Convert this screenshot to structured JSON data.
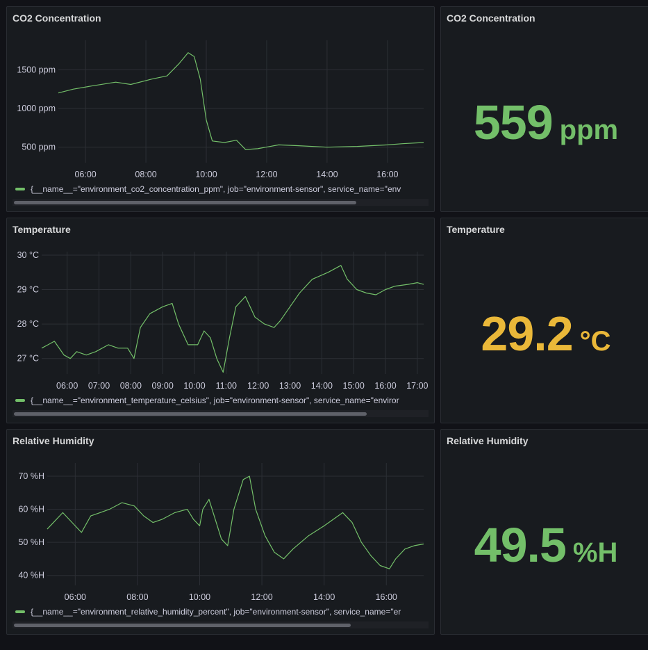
{
  "colors": {
    "series": "#73bf69",
    "green": "#73bf69",
    "yellow": "#eab839",
    "grid": "#2c2f35"
  },
  "panels": {
    "co2_chart": {
      "title": "CO2 Concentration",
      "legend": "{__name__=\"environment_co2_concentration_ppm\", job=\"environment-sensor\", service_name=\"env"
    },
    "co2_stat": {
      "title": "CO2 Concentration",
      "value": "559",
      "unit": "ppm",
      "color": "#73bf69"
    },
    "temp_chart": {
      "title": "Temperature",
      "legend": "{__name__=\"environment_temperature_celsius\", job=\"environment-sensor\", service_name=\"enviror"
    },
    "temp_stat": {
      "title": "Temperature",
      "value": "29.2",
      "unit": "°C",
      "color": "#eab839"
    },
    "hum_chart": {
      "title": "Relative Humidity",
      "legend": "{__name__=\"environment_relative_humidity_percent\", job=\"environment-sensor\", service_name=\"er"
    },
    "hum_stat": {
      "title": "Relative Humidity",
      "value": "49.5",
      "unit": "%H",
      "color": "#73bf69"
    }
  },
  "chart_data": [
    {
      "type": "line",
      "title": "CO2 Concentration",
      "xlim": [
        5.1,
        17.2
      ],
      "ylim": [
        300,
        1880
      ],
      "y_ticks": [
        500,
        1000,
        1500
      ],
      "y_tick_labels": [
        "500 ppm",
        "1000 ppm",
        "1500 ppm"
      ],
      "x_ticks": [
        6,
        8,
        10,
        12,
        14,
        16
      ],
      "x_tick_labels": [
        "06:00",
        "08:00",
        "10:00",
        "12:00",
        "14:00",
        "16:00"
      ],
      "grid": true,
      "series": [
        {
          "values": [
            [
              5.1,
              1200
            ],
            [
              5.6,
              1250
            ],
            [
              6.2,
              1290
            ],
            [
              7.0,
              1340
            ],
            [
              7.5,
              1310
            ],
            [
              8.2,
              1380
            ],
            [
              8.7,
              1420
            ],
            [
              9.1,
              1580
            ],
            [
              9.4,
              1720
            ],
            [
              9.6,
              1670
            ],
            [
              9.8,
              1380
            ],
            [
              10.0,
              850
            ],
            [
              10.2,
              580
            ],
            [
              10.6,
              560
            ],
            [
              11.0,
              590
            ],
            [
              11.3,
              470
            ],
            [
              11.7,
              480
            ],
            [
              12.4,
              530
            ],
            [
              13.0,
              520
            ],
            [
              14.0,
              500
            ],
            [
              15.0,
              510
            ],
            [
              16.0,
              530
            ],
            [
              16.5,
              545
            ],
            [
              17.2,
              560
            ]
          ]
        }
      ]
    },
    {
      "type": "line",
      "title": "Temperature",
      "xlim": [
        5.2,
        17.2
      ],
      "ylim": [
        26.55,
        30.1
      ],
      "y_ticks": [
        27,
        28,
        29,
        30
      ],
      "y_tick_labels": [
        "27 °C",
        "28 °C",
        "29 °C",
        "30 °C"
      ],
      "x_ticks": [
        6,
        7,
        8,
        9,
        10,
        11,
        12,
        13,
        14,
        15,
        16,
        17
      ],
      "x_tick_labels": [
        "06:00",
        "07:00",
        "08:00",
        "09:00",
        "10:00",
        "11:00",
        "12:00",
        "13:00",
        "14:00",
        "15:00",
        "16:00",
        "17:00"
      ],
      "grid": true,
      "series": [
        {
          "values": [
            [
              5.2,
              27.3
            ],
            [
              5.4,
              27.4
            ],
            [
              5.6,
              27.5
            ],
            [
              5.9,
              27.1
            ],
            [
              6.1,
              27.0
            ],
            [
              6.3,
              27.2
            ],
            [
              6.6,
              27.1
            ],
            [
              6.9,
              27.2
            ],
            [
              7.3,
              27.4
            ],
            [
              7.6,
              27.3
            ],
            [
              7.9,
              27.3
            ],
            [
              8.1,
              27.0
            ],
            [
              8.3,
              27.9
            ],
            [
              8.6,
              28.3
            ],
            [
              9.0,
              28.5
            ],
            [
              9.3,
              28.6
            ],
            [
              9.5,
              28.0
            ],
            [
              9.8,
              27.4
            ],
            [
              10.1,
              27.4
            ],
            [
              10.3,
              27.8
            ],
            [
              10.5,
              27.6
            ],
            [
              10.7,
              27.0
            ],
            [
              10.9,
              26.6
            ],
            [
              11.1,
              27.6
            ],
            [
              11.3,
              28.5
            ],
            [
              11.6,
              28.8
            ],
            [
              11.9,
              28.2
            ],
            [
              12.2,
              28.0
            ],
            [
              12.5,
              27.9
            ],
            [
              12.7,
              28.1
            ],
            [
              13.0,
              28.5
            ],
            [
              13.3,
              28.9
            ],
            [
              13.7,
              29.3
            ],
            [
              14.2,
              29.5
            ],
            [
              14.6,
              29.7
            ],
            [
              14.8,
              29.3
            ],
            [
              15.1,
              29.0
            ],
            [
              15.4,
              28.9
            ],
            [
              15.7,
              28.85
            ],
            [
              16.0,
              29.0
            ],
            [
              16.3,
              29.1
            ],
            [
              16.7,
              29.15
            ],
            [
              17.0,
              29.2
            ],
            [
              17.2,
              29.15
            ]
          ]
        }
      ]
    },
    {
      "type": "line",
      "title": "Relative Humidity",
      "xlim": [
        5.1,
        17.2
      ],
      "ylim": [
        37,
        74
      ],
      "y_ticks": [
        40,
        50,
        60,
        70
      ],
      "y_tick_labels": [
        "40 %H",
        "50 %H",
        "60 %H",
        "70 %H"
      ],
      "x_ticks": [
        6,
        8,
        10,
        12,
        14,
        16
      ],
      "x_tick_labels": [
        "06:00",
        "08:00",
        "10:00",
        "12:00",
        "14:00",
        "16:00"
      ],
      "grid": true,
      "series": [
        {
          "values": [
            [
              5.1,
              54
            ],
            [
              5.3,
              56
            ],
            [
              5.6,
              59
            ],
            [
              5.9,
              56
            ],
            [
              6.2,
              53
            ],
            [
              6.5,
              58
            ],
            [
              6.8,
              59
            ],
            [
              7.1,
              60
            ],
            [
              7.5,
              62
            ],
            [
              7.9,
              61
            ],
            [
              8.2,
              58
            ],
            [
              8.5,
              56
            ],
            [
              8.8,
              57
            ],
            [
              9.2,
              59
            ],
            [
              9.6,
              60
            ],
            [
              9.8,
              57
            ],
            [
              10.0,
              55
            ],
            [
              10.1,
              60
            ],
            [
              10.3,
              63
            ],
            [
              10.5,
              57
            ],
            [
              10.7,
              51
            ],
            [
              10.9,
              49
            ],
            [
              11.1,
              60
            ],
            [
              11.4,
              69
            ],
            [
              11.6,
              70
            ],
            [
              11.8,
              60
            ],
            [
              12.1,
              52
            ],
            [
              12.4,
              47
            ],
            [
              12.7,
              45
            ],
            [
              13.0,
              48
            ],
            [
              13.5,
              52
            ],
            [
              14.0,
              55
            ],
            [
              14.6,
              59
            ],
            [
              14.9,
              56
            ],
            [
              15.2,
              50
            ],
            [
              15.5,
              46
            ],
            [
              15.8,
              43
            ],
            [
              16.1,
              42
            ],
            [
              16.3,
              45
            ],
            [
              16.6,
              48
            ],
            [
              16.9,
              49
            ],
            [
              17.2,
              49.5
            ]
          ]
        }
      ]
    }
  ]
}
